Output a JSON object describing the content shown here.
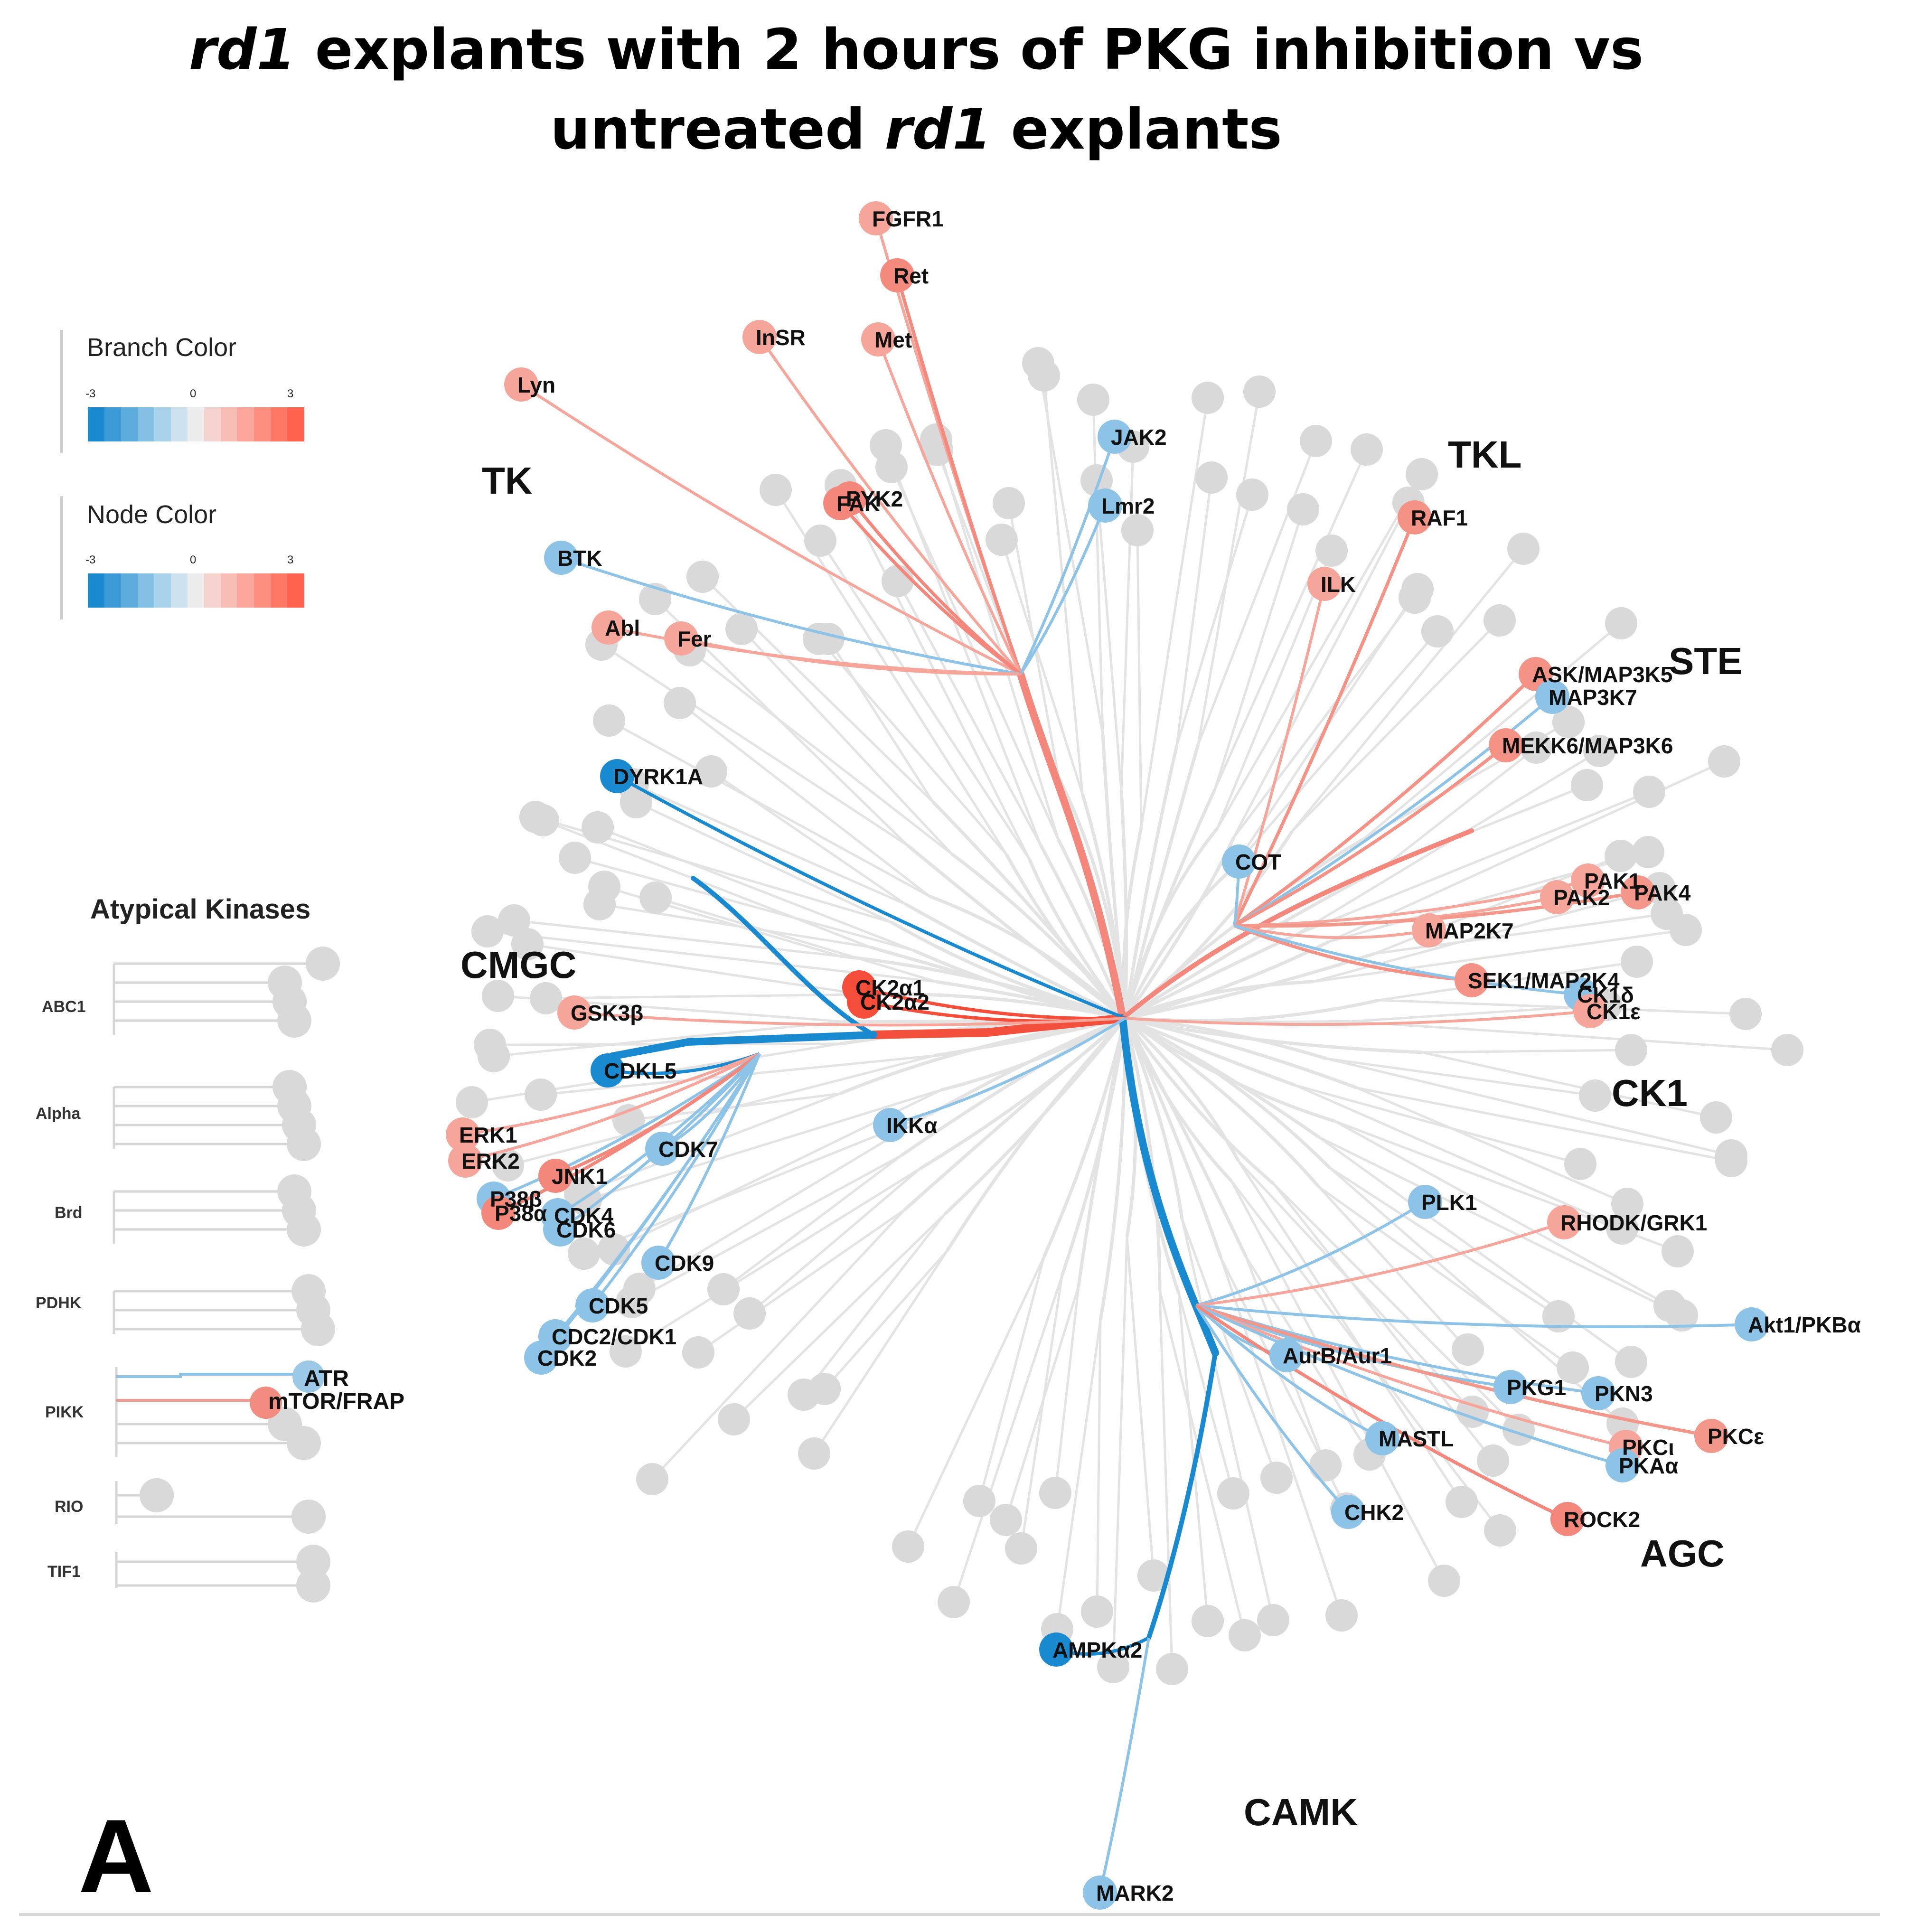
{
  "title": {
    "line1_italic": "rd1",
    "line1_rest": " explants with 2 hours of PKG inhibition vs",
    "line2_start": "untreated ",
    "line2_italic": "rd1",
    "line2_end": " explants"
  },
  "panel_letter": "A",
  "legend": {
    "branch": {
      "label": "Branch Color",
      "min": "-3",
      "mid": "0",
      "max": "3"
    },
    "node": {
      "label": "Node Color",
      "min": "-3",
      "mid": "0",
      "max": "3"
    },
    "scale_colors": [
      "#1a8ad0",
      "#3c9bd6",
      "#5eacdc",
      "#84c0e4",
      "#a8d2ea",
      "#cde2ee",
      "#ececec",
      "#f5d4d0",
      "#f8bdb5",
      "#fba69a",
      "#fd8f80",
      "#fe7866",
      "#ff624f"
    ]
  },
  "atypical": {
    "title": "Atypical Kinases",
    "groups": [
      "ABC1",
      "Alpha",
      "Brd",
      "PDHK",
      "PIKK",
      "RIO",
      "TIF1"
    ],
    "nodes": [
      {
        "label": "ATR",
        "color": "#9cc9e6"
      },
      {
        "label": "mTOR/FRAP",
        "color": "#f28b80"
      }
    ]
  },
  "groups": [
    "TK",
    "TKL",
    "STE",
    "CK1",
    "AGC",
    "CAMK",
    "CMGC"
  ],
  "kinases": [
    "FGFR1",
    "Ret",
    "InSR",
    "Met",
    "Lyn",
    "JAK2",
    "Lmr2",
    "PYK2",
    "FAK",
    "BTK",
    "Abl",
    "Fer",
    "RAF1",
    "ILK",
    "ASK/MAP3K5",
    "MAP3K7",
    "MEKK6/MAP3K6",
    "COT",
    "PAK1",
    "PAK2",
    "PAK4",
    "MAP2K7",
    "SEK1/MAP2K4",
    "CK1δ",
    "CK1ε",
    "DYRK1A",
    "CK2α1",
    "CK2α2",
    "GSK3β",
    "CDKL5",
    "IKKα",
    "ERK1",
    "ERK2",
    "JNK1",
    "CDK7",
    "P38β",
    "P38α",
    "CDK4",
    "CDK6",
    "CDK9",
    "CDK5",
    "CDC2/CDK1",
    "CDK2",
    "PLK1",
    "RHODK/GRK1",
    "Akt1/PKBα",
    "AurB/Aur1",
    "PKG1",
    "PKN3",
    "MASTL",
    "PKCε",
    "PKCι",
    "PKAα",
    "CHK2",
    "ROCK2",
    "AMPKα2",
    "MARK2"
  ]
}
